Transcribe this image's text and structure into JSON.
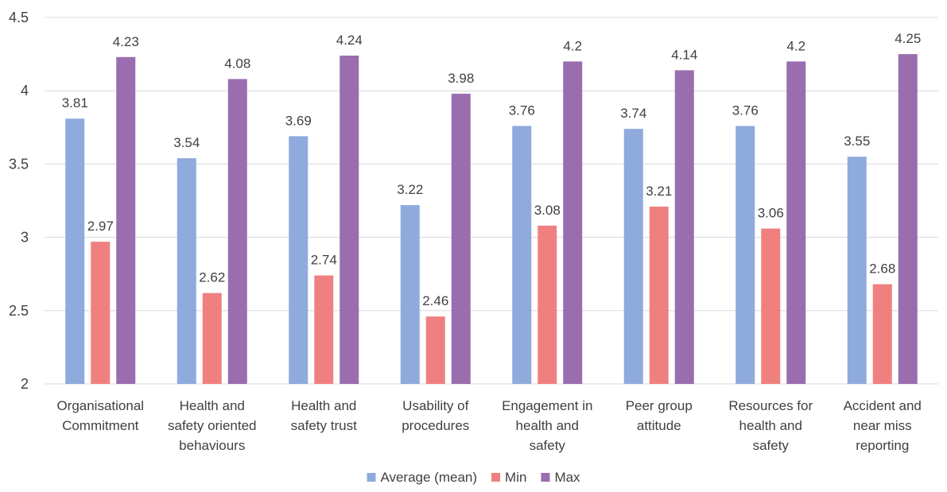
{
  "chart_data": {
    "type": "bar",
    "title": "",
    "xlabel": "",
    "ylabel": "",
    "ylim": [
      2,
      4.5
    ],
    "yticks": [
      "2",
      "2.5",
      "3",
      "3.5",
      "4",
      "4.5"
    ],
    "grid": true,
    "legend_position": "bottom",
    "categories": [
      [
        "Organisational",
        "Commitment"
      ],
      [
        "Health and",
        "safety oriented",
        "behaviours"
      ],
      [
        "Health and",
        "safety trust"
      ],
      [
        "Usability of",
        "procedures"
      ],
      [
        "Engagement in",
        "health and",
        "safety"
      ],
      [
        "Peer group",
        "attitude"
      ],
      [
        "Resources for",
        "health and",
        "safety"
      ],
      [
        "Accident and",
        "near miss",
        "reporting"
      ]
    ],
    "series": [
      {
        "name": "Average (mean)",
        "color": "#8faadc",
        "values": [
          3.81,
          3.54,
          3.69,
          3.22,
          3.76,
          3.74,
          3.76,
          3.55
        ],
        "labels": [
          "3.81",
          "3.54",
          "3.69",
          "3.22",
          "3.76",
          "3.74",
          "3.76",
          "3.55"
        ]
      },
      {
        "name": "Min",
        "color": "#f08080",
        "values": [
          2.97,
          2.62,
          2.74,
          2.46,
          3.08,
          3.21,
          3.06,
          2.68
        ],
        "labels": [
          "2.97",
          "2.62",
          "2.74",
          "2.46",
          "3.08",
          "3.21",
          "3.06",
          "2.68"
        ]
      },
      {
        "name": "Max",
        "color": "#9a6daf",
        "values": [
          4.23,
          4.08,
          4.24,
          3.98,
          4.2,
          4.14,
          4.2,
          4.25
        ],
        "labels": [
          "4.23",
          "4.08",
          "4.24",
          "3.98",
          "4.2",
          "4.14",
          "4.2",
          "4.25"
        ]
      }
    ]
  }
}
